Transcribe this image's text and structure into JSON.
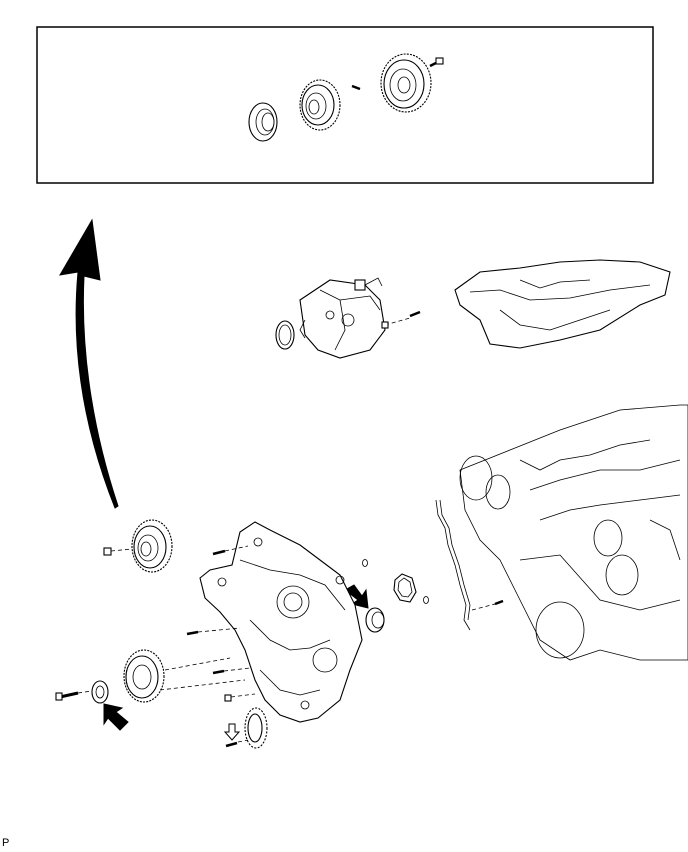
{
  "figure": {
    "code": "P"
  }
}
